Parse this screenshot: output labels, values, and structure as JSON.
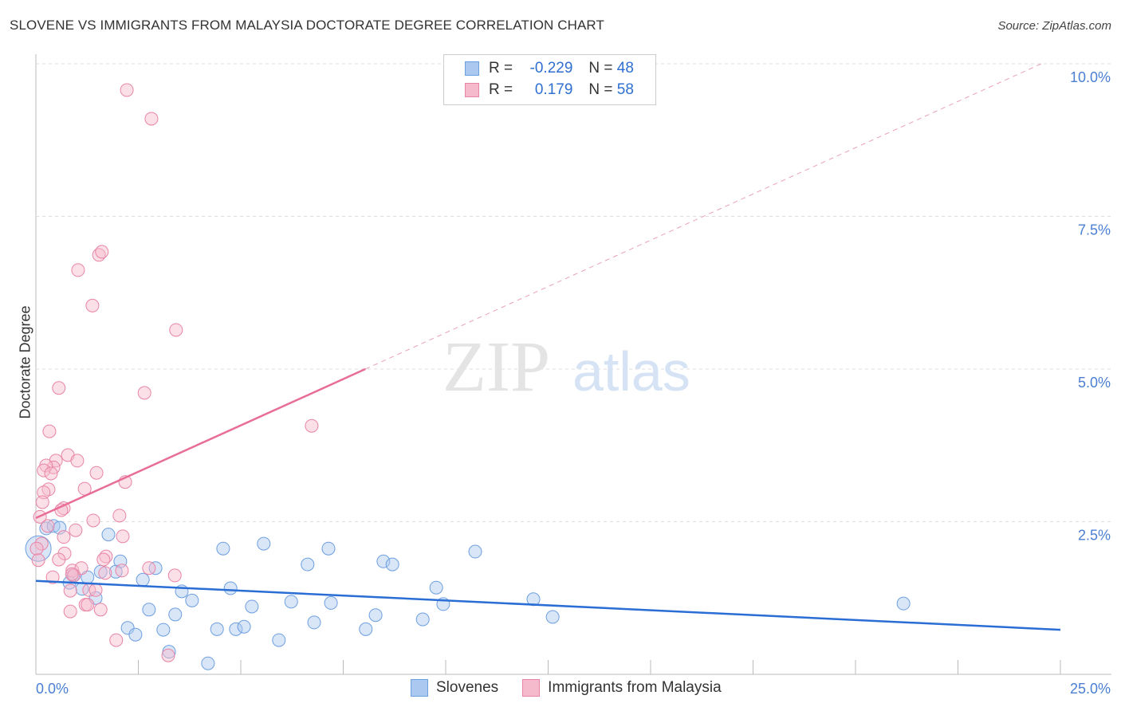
{
  "title": "SLOVENE VS IMMIGRANTS FROM MALAYSIA DOCTORATE DEGREE CORRELATION CHART",
  "source": "Source: ZipAtlas.com",
  "watermark": "ZIPatlas",
  "colors": {
    "blue_fill": "#aac8f0",
    "blue_stroke": "#6d9fe0",
    "blue_line": "#2a6dd4",
    "pink_fill": "#f6bacd",
    "pink_stroke": "#e884a6",
    "pink_line": "#e86d97",
    "axis_label": "#4a7fd4"
  },
  "legend": {
    "rows": [
      {
        "r_label": "R =",
        "r_value": "-0.229",
        "n_label": "N =",
        "n_value": "48"
      },
      {
        "r_label": "R =",
        "r_value": "0.179",
        "n_label": "N =",
        "n_value": "58"
      }
    ]
  },
  "chart_data": {
    "type": "scatter",
    "title": "SLOVENE VS IMMIGRANTS FROM MALAYSIA DOCTORATE DEGREE CORRELATION CHART",
    "xlabel": "",
    "ylabel": "Doctorate Degree",
    "xlim": [
      0,
      25
    ],
    "ylim": [
      0,
      10
    ],
    "x_tick_labels": [
      "0.0%",
      "25.0%"
    ],
    "y_ticks": [
      2.5,
      5.0,
      7.5,
      10.0
    ],
    "y_tick_labels": [
      "2.5%",
      "5.0%",
      "7.5%",
      "10.0%"
    ],
    "grid": true,
    "legend_position": "top-center",
    "series": [
      {
        "name": "Slovenes",
        "trend": {
          "x": [
            0,
            25
          ],
          "y": [
            1.53,
            0.73
          ]
        },
        "points": [
          [
            0.06,
            2.06
          ],
          [
            0.25,
            2.39
          ],
          [
            0.43,
            2.43
          ],
          [
            0.58,
            2.4
          ],
          [
            1.77,
            2.29
          ],
          [
            2.06,
            1.85
          ],
          [
            2.61,
            1.55
          ],
          [
            2.92,
            1.74
          ],
          [
            0.82,
            1.5
          ],
          [
            0.91,
            1.62
          ],
          [
            1.13,
            1.4
          ],
          [
            1.26,
            1.59
          ],
          [
            1.46,
            1.25
          ],
          [
            1.58,
            1.68
          ],
          [
            1.95,
            1.68
          ],
          [
            2.24,
            0.76
          ],
          [
            2.43,
            0.65
          ],
          [
            2.76,
            1.06
          ],
          [
            3.11,
            0.73
          ],
          [
            3.4,
            0.98
          ],
          [
            3.56,
            1.36
          ],
          [
            3.81,
            1.21
          ],
          [
            4.2,
            0.18
          ],
          [
            4.42,
            0.74
          ],
          [
            4.57,
            2.06
          ],
          [
            4.75,
            1.41
          ],
          [
            4.88,
            0.74
          ],
          [
            5.08,
            0.78
          ],
          [
            5.27,
            1.11
          ],
          [
            5.56,
            2.14
          ],
          [
            5.93,
            0.56
          ],
          [
            6.23,
            1.19
          ],
          [
            6.63,
            1.8
          ],
          [
            6.79,
            0.85
          ],
          [
            7.14,
            2.06
          ],
          [
            7.2,
            1.17
          ],
          [
            8.05,
            0.74
          ],
          [
            8.29,
            0.97
          ],
          [
            8.48,
            1.85
          ],
          [
            8.7,
            1.8
          ],
          [
            9.44,
            0.9
          ],
          [
            9.77,
            1.42
          ],
          [
            9.94,
            1.15
          ],
          [
            10.72,
            2.01
          ],
          [
            12.14,
            1.23
          ],
          [
            12.61,
            0.94
          ],
          [
            21.17,
            1.16
          ],
          [
            3.25,
            0.37
          ]
        ]
      },
      {
        "name": "Immigrants from Malaysia",
        "trend": {
          "x": [
            0,
            8.04
          ],
          "y": [
            2.56,
            5.0
          ]
        },
        "trend_dashed": {
          "x": [
            8.04,
            24.6
          ],
          "y": [
            5.0,
            10.02
          ]
        },
        "points": [
          [
            2.22,
            9.57
          ],
          [
            2.82,
            9.1
          ],
          [
            1.03,
            6.62
          ],
          [
            1.54,
            6.87
          ],
          [
            1.61,
            6.92
          ],
          [
            1.38,
            6.04
          ],
          [
            3.42,
            5.64
          ],
          [
            2.65,
            4.61
          ],
          [
            0.56,
            4.69
          ],
          [
            6.73,
            4.07
          ],
          [
            0.33,
            3.98
          ],
          [
            0.78,
            3.59
          ],
          [
            1.01,
            3.5
          ],
          [
            0.49,
            3.5
          ],
          [
            0.43,
            3.39
          ],
          [
            0.25,
            3.42
          ],
          [
            0.19,
            3.34
          ],
          [
            0.37,
            3.29
          ],
          [
            1.48,
            3.3
          ],
          [
            2.18,
            3.15
          ],
          [
            0.31,
            3.03
          ],
          [
            1.19,
            3.04
          ],
          [
            0.19,
            2.98
          ],
          [
            0.16,
            2.82
          ],
          [
            0.68,
            2.72
          ],
          [
            0.62,
            2.69
          ],
          [
            2.04,
            2.6
          ],
          [
            0.1,
            2.58
          ],
          [
            1.4,
            2.52
          ],
          [
            0.97,
            2.36
          ],
          [
            2.12,
            2.26
          ],
          [
            0.68,
            2.25
          ],
          [
            0.14,
            2.14
          ],
          [
            0.02,
            2.06
          ],
          [
            0.7,
            1.98
          ],
          [
            1.71,
            1.93
          ],
          [
            1.65,
            1.88
          ],
          [
            0.56,
            1.88
          ],
          [
            0.06,
            1.87
          ],
          [
            0.89,
            1.7
          ],
          [
            1.11,
            1.74
          ],
          [
            2.76,
            1.74
          ],
          [
            2.1,
            1.7
          ],
          [
            1.69,
            1.66
          ],
          [
            3.39,
            1.62
          ],
          [
            0.41,
            1.59
          ],
          [
            0.93,
            1.62
          ],
          [
            1.3,
            1.38
          ],
          [
            0.84,
            1.37
          ],
          [
            0.84,
            1.03
          ],
          [
            1.58,
            1.06
          ],
          [
            1.21,
            1.14
          ],
          [
            1.26,
            1.14
          ],
          [
            1.96,
            0.56
          ],
          [
            3.23,
            0.31
          ],
          [
            0.88,
            1.64
          ],
          [
            1.46,
            1.38
          ],
          [
            0.29,
            2.43
          ]
        ]
      }
    ]
  }
}
